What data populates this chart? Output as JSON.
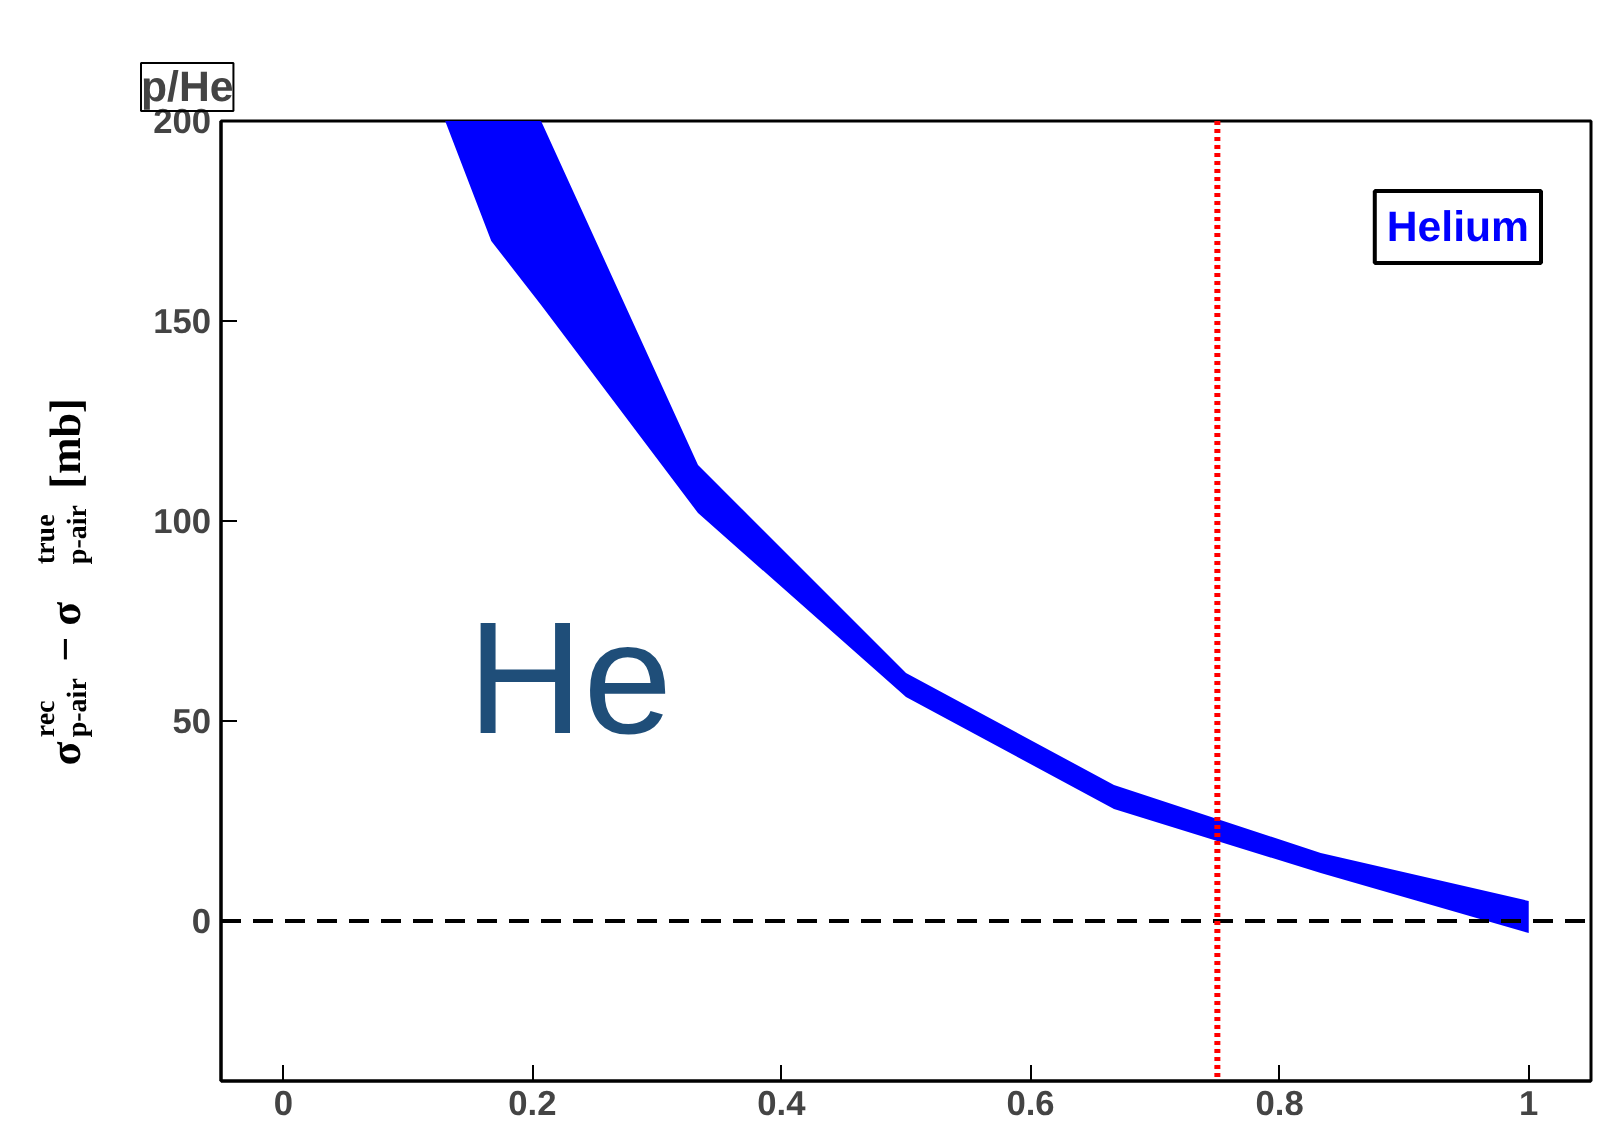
{
  "chart_data": {
    "type": "line",
    "title": "p/He",
    "ylabel": "σ$^{rec}$$_{p-air}$ − σ$^{true}$$_{p-air}$ [mb]",
    "x": [
      0,
      0.13,
      0.167,
      0.207,
      0.333,
      0.5,
      0.667,
      0.833,
      1
    ],
    "series": [
      {
        "name": "Helium",
        "color": "#0000ff",
        "values": [
          null,
          null,
          null,
          null,
          null,
          null,
          null,
          null,
          null
        ],
        "lower": [
          200,
          200,
          170,
          154,
          102,
          56,
          28,
          12,
          -3
        ],
        "upper": [
          200,
          200,
          200,
          200,
          114,
          62,
          34,
          17,
          5
        ]
      }
    ],
    "xlim": [
      -0.05,
      1.05
    ],
    "ylim": [
      -40,
      200
    ],
    "xticks": [
      0,
      0.2,
      0.4,
      0.6,
      0.8,
      1
    ],
    "yticks": [
      0,
      50,
      100,
      150,
      200
    ],
    "ref_lines": [
      {
        "axis": "y",
        "value": 0,
        "color": "#000000",
        "line_style": "dashed"
      },
      {
        "axis": "x",
        "value": 0.75,
        "color": "#ff0000",
        "line_style": "dotted"
      }
    ],
    "annotations": [
      "He"
    ],
    "grid": false
  }
}
